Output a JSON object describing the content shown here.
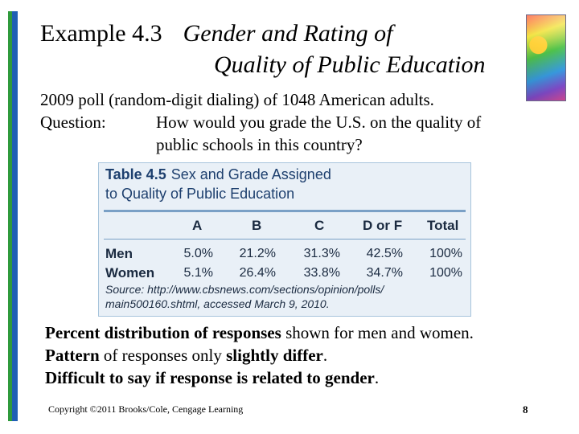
{
  "title": {
    "example": "Example 4.3",
    "topic_line1": "Gender and Rating of",
    "topic_line2": "Quality of Public Education"
  },
  "intro": "2009 poll (random-digit dialing) of 1048 American adults.",
  "question": {
    "label": "Question:",
    "text": "How would you grade the U.S. on the quality of public schools in this country?"
  },
  "table": {
    "number": "Table 4.5",
    "caption_line1": "Sex and Grade Assigned",
    "caption_line2": "to Quality of Public Education",
    "headers": [
      "A",
      "B",
      "C",
      "D or F",
      "Total"
    ],
    "rows": [
      {
        "label": "Men",
        "values": [
          "5.0%",
          "21.2%",
          "31.3%",
          "42.5%",
          "100%"
        ]
      },
      {
        "label": "Women",
        "values": [
          "5.1%",
          "26.4%",
          "33.8%",
          "34.7%",
          "100%"
        ]
      }
    ],
    "source": "Source: http://www.cbsnews.com/sections/opinion/polls/ main500160.shtml, accessed March 9, 2010."
  },
  "bullets": [
    {
      "bold": "Percent distribution of responses",
      "rest": " shown for men and women."
    },
    {
      "bold": "Pattern",
      "mid": " of responses only ",
      "bold2": "slightly differ",
      "rest": "."
    },
    {
      "bold": "Difficult to say if response is related to gender",
      "rest": "."
    }
  ],
  "footer": {
    "copyright": "Copyright ©2011 Brooks/Cole, Cengage Learning",
    "page": "8"
  }
}
